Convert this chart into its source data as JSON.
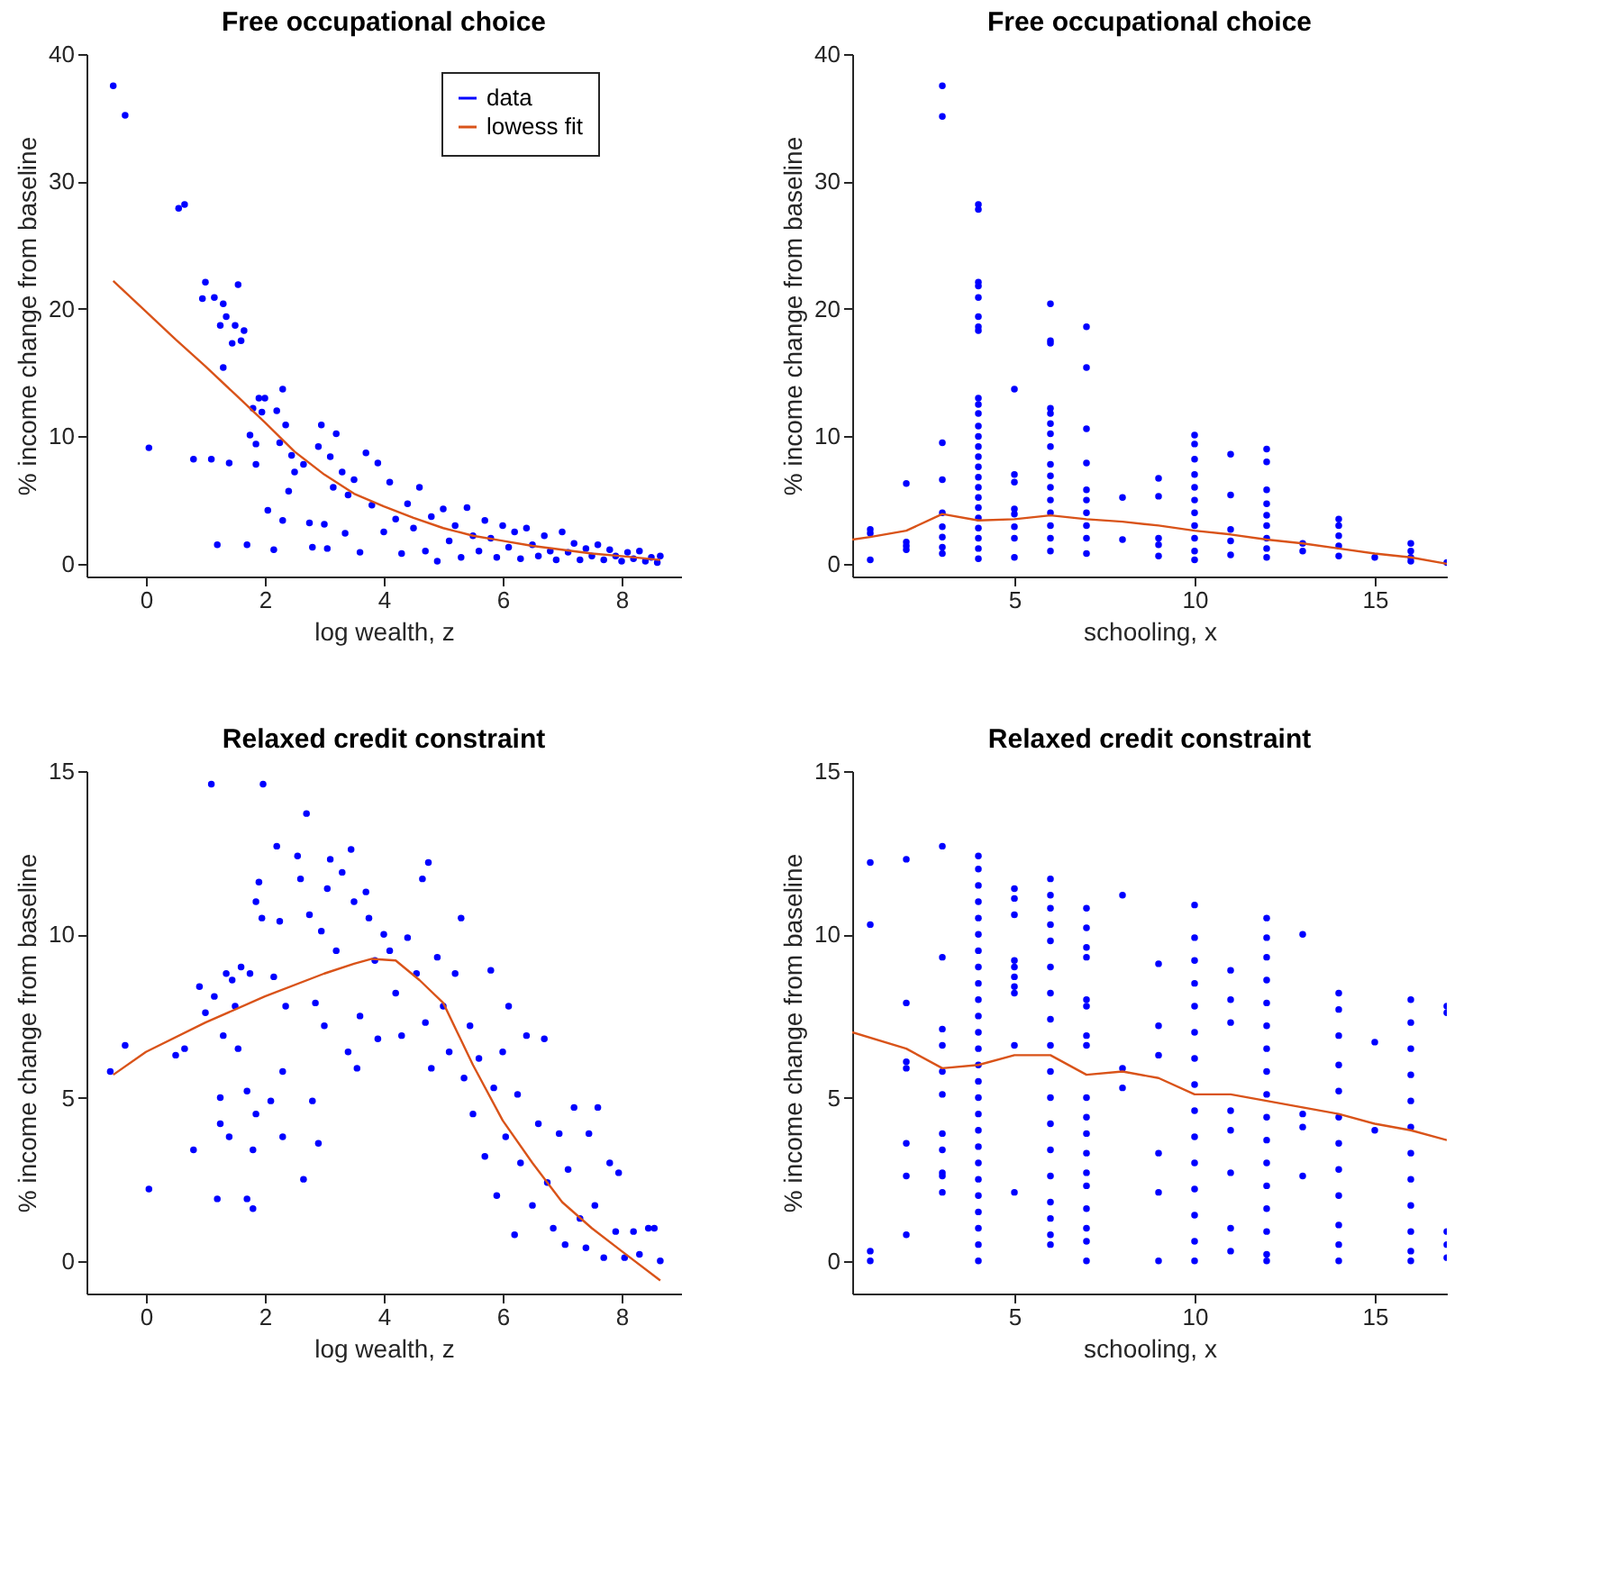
{
  "chart_data": [
    {
      "type": "scatter",
      "title": "Free occupational choice",
      "xlabel": "log wealth, z",
      "ylabel": "% income change from baseline",
      "xlim": [
        -1,
        9
      ],
      "ylim": [
        -1,
        40
      ],
      "xticks": [
        0,
        2,
        4,
        6,
        8
      ],
      "yticks": [
        0,
        10,
        20,
        30,
        40
      ],
      "legend": "top right",
      "series": [
        {
          "name": "data",
          "marker": "circle",
          "color": "#0000ff",
          "x": [
            -0.55,
            -0.35,
            0.05,
            0.55,
            0.65,
            0.8,
            0.95,
            1.0,
            1.1,
            1.15,
            1.2,
            1.25,
            1.3,
            1.3,
            1.35,
            1.4,
            1.45,
            1.5,
            1.55,
            1.6,
            1.65,
            1.7,
            1.75,
            1.8,
            1.85,
            1.85,
            1.9,
            1.95,
            2.0,
            2.05,
            2.15,
            2.2,
            2.25,
            2.3,
            2.3,
            2.35,
            2.4,
            2.45,
            2.5,
            2.65,
            2.75,
            2.8,
            2.9,
            2.95,
            3.0,
            3.05,
            3.1,
            3.15,
            3.2,
            3.3,
            3.35,
            3.4,
            3.5,
            3.6,
            3.7,
            3.8,
            3.9,
            4.0,
            4.1,
            4.2,
            4.3,
            4.4,
            4.5,
            4.6,
            4.7,
            4.8,
            4.9,
            5.0,
            5.1,
            5.2,
            5.3,
            5.4,
            5.5,
            5.6,
            5.7,
            5.8,
            5.9,
            6.0,
            6.1,
            6.2,
            6.3,
            6.4,
            6.5,
            6.6,
            6.7,
            6.8,
            6.9,
            7.0,
            7.1,
            7.2,
            7.3,
            7.4,
            7.5,
            7.6,
            7.7,
            7.8,
            7.9,
            8.0,
            8.1,
            8.2,
            8.3,
            8.4,
            8.5,
            8.6,
            8.65
          ],
          "values": [
            37.5,
            35.2,
            9.1,
            27.9,
            28.2,
            8.2,
            20.8,
            22.1,
            8.2,
            20.9,
            1.5,
            18.7,
            20.4,
            15.4,
            19.4,
            7.9,
            17.3,
            18.7,
            21.9,
            17.5,
            18.3,
            1.5,
            10.1,
            12.2,
            9.4,
            7.8,
            13.0,
            11.9,
            13.0,
            4.2,
            1.1,
            12.0,
            9.5,
            3.4,
            13.7,
            10.9,
            5.7,
            8.5,
            7.2,
            7.8,
            3.2,
            1.3,
            9.2,
            10.9,
            3.1,
            1.2,
            8.4,
            6.0,
            10.2,
            7.2,
            2.4,
            5.4,
            6.6,
            0.9,
            8.7,
            4.6,
            7.9,
            2.5,
            6.4,
            3.5,
            0.8,
            4.7,
            2.8,
            6.0,
            1.0,
            3.7,
            0.2,
            4.3,
            1.8,
            3.0,
            0.5,
            4.4,
            2.2,
            1.0,
            3.4,
            2.0,
            0.5,
            3.0,
            1.3,
            2.5,
            0.4,
            2.8,
            1.5,
            0.6,
            2.2,
            1.0,
            0.3,
            2.5,
            0.9,
            1.6,
            0.3,
            1.2,
            0.6,
            1.5,
            0.3,
            1.1,
            0.6,
            0.2,
            0.9,
            0.4,
            1.0,
            0.2,
            0.5,
            0.1,
            0.6
          ]
        },
        {
          "name": "lowess fit",
          "type": "line",
          "marker": "none",
          "color": "#d95319",
          "x": [
            -0.55,
            0,
            0.5,
            1,
            1.5,
            2,
            2.5,
            3,
            3.5,
            4,
            4.5,
            5,
            5.5,
            6,
            6.5,
            7,
            7.5,
            8,
            8.65
          ],
          "values": [
            22.2,
            19.8,
            17.6,
            15.5,
            13.3,
            11.1,
            8.8,
            7.0,
            5.5,
            4.5,
            3.6,
            2.8,
            2.2,
            1.8,
            1.4,
            1.1,
            0.8,
            0.6,
            0.3
          ]
        }
      ]
    },
    {
      "type": "scatter",
      "title": "Free occupational choice",
      "xlabel": "schooling, x",
      "ylabel": "% income change from baseline",
      "xlim": [
        0.5,
        17
      ],
      "ylim": [
        -1,
        40
      ],
      "xticks": [
        5,
        10,
        15
      ],
      "yticks": [
        0,
        10,
        20,
        30,
        40
      ],
      "series": [
        {
          "marker": "circle",
          "color": "#0000ff",
          "x": [
            1,
            1,
            1,
            2,
            2,
            2,
            2,
            3,
            3,
            3,
            3,
            3,
            3,
            3,
            3,
            3,
            4,
            4,
            4,
            4,
            4,
            4,
            4,
            4,
            4,
            4,
            4,
            4,
            4,
            4,
            4,
            4,
            4,
            4,
            4,
            4,
            4,
            4,
            4,
            4,
            4,
            5,
            5,
            5,
            5,
            5,
            5,
            5,
            5,
            6,
            6,
            6,
            6,
            6,
            6,
            6,
            6,
            6,
            6,
            6,
            6,
            6,
            6,
            6,
            6,
            7,
            7,
            7,
            7,
            7,
            7,
            7,
            7,
            7,
            7,
            8,
            8,
            9,
            9,
            9,
            9,
            9,
            10,
            10,
            10,
            10,
            10,
            10,
            10,
            10,
            10,
            10,
            10,
            11,
            11,
            11,
            11,
            11,
            12,
            12,
            12,
            12,
            12,
            12,
            12,
            12,
            12,
            13,
            13,
            14,
            14,
            14,
            14,
            14,
            15,
            16,
            16,
            16,
            16,
            17
          ],
          "values": [
            2.7,
            2.4,
            0.3,
            6.3,
            1.7,
            1.4,
            1.1,
            37.5,
            35.1,
            9.5,
            6.6,
            4.0,
            2.9,
            2.1,
            1.3,
            0.8,
            28.2,
            27.8,
            22.1,
            21.8,
            20.9,
            19.4,
            18.6,
            18.3,
            13,
            12.5,
            11.8,
            10.8,
            10,
            9.2,
            8.4,
            7.6,
            6.8,
            6,
            5.2,
            4.4,
            3.6,
            2.8,
            2,
            1.2,
            0.4,
            13.7,
            7.0,
            6.4,
            4.3,
            3.9,
            2.9,
            2.0,
            0.5,
            20.4,
            17.5,
            17.3,
            12.2,
            11.8,
            11.0,
            10.2,
            9.2,
            7.8,
            6.9,
            6,
            5,
            4,
            3,
            2,
            1,
            18.6,
            15.4,
            10.6,
            7.9,
            5.8,
            5.0,
            4.0,
            3.0,
            2.0,
            0.8,
            5.2,
            1.9,
            6.7,
            5.3,
            2.0,
            1.5,
            0.6,
            10.1,
            9.4,
            8.2,
            7,
            6,
            5,
            4,
            3,
            2,
            1,
            0.3,
            8.6,
            5.4,
            2.7,
            1.8,
            0.7,
            9.0,
            8.0,
            5.8,
            4.7,
            3.8,
            3,
            2,
            1.2,
            0.5,
            1.6,
            1.0,
            3.5,
            3.0,
            2.2,
            1.4,
            0.6,
            0.5,
            1.6,
            1.0,
            0.5,
            0.2,
            0.1
          ]
        },
        {
          "type": "line",
          "marker": "none",
          "color": "#d95319",
          "x": [
            0.5,
            1,
            2,
            3,
            4,
            5,
            6,
            7,
            8,
            9,
            10,
            11,
            12,
            13,
            14,
            15,
            16,
            17
          ],
          "values": [
            1.9,
            2.1,
            2.6,
            3.9,
            3.4,
            3.5,
            3.8,
            3.5,
            3.3,
            3.0,
            2.6,
            2.3,
            1.9,
            1.6,
            1.2,
            0.8,
            0.5,
            0.0
          ]
        }
      ]
    },
    {
      "type": "scatter",
      "title": "Relaxed credit constraint",
      "xlabel": "log wealth, z",
      "ylabel": "% income change from baseline",
      "xlim": [
        -1,
        9
      ],
      "ylim": [
        -1,
        15
      ],
      "xticks": [
        0,
        2,
        4,
        6,
        8
      ],
      "yticks": [
        0,
        5,
        10,
        15
      ],
      "series": [
        {
          "marker": "circle",
          "color": "#0000ff",
          "x": [
            -0.6,
            -0.35,
            0.05,
            0.5,
            0.65,
            0.8,
            0.9,
            1.0,
            1.1,
            1.15,
            1.2,
            1.25,
            1.25,
            1.3,
            1.35,
            1.4,
            1.45,
            1.5,
            1.55,
            1.6,
            1.7,
            1.7,
            1.75,
            1.8,
            1.8,
            1.85,
            1.85,
            1.9,
            1.95,
            1.97,
            2.1,
            2.15,
            2.2,
            2.25,
            2.3,
            2.3,
            2.35,
            2.55,
            2.6,
            2.65,
            2.7,
            2.75,
            2.8,
            2.85,
            2.9,
            2.95,
            3.0,
            3.05,
            3.1,
            3.2,
            3.3,
            3.4,
            3.45,
            3.5,
            3.55,
            3.6,
            3.7,
            3.75,
            3.85,
            3.9,
            4.0,
            4.1,
            4.2,
            4.3,
            4.4,
            4.55,
            4.65,
            4.7,
            4.75,
            4.8,
            4.9,
            5.0,
            5.1,
            5.2,
            5.3,
            5.35,
            5.45,
            5.5,
            5.6,
            5.7,
            5.8,
            5.85,
            5.9,
            6.0,
            6.05,
            6.1,
            6.2,
            6.25,
            6.3,
            6.4,
            6.5,
            6.6,
            6.7,
            6.75,
            6.85,
            6.95,
            7.05,
            7.1,
            7.2,
            7.3,
            7.4,
            7.45,
            7.55,
            7.6,
            7.7,
            7.8,
            7.9,
            7.95,
            8.05,
            8.2,
            8.3,
            8.45,
            8.55,
            8.65
          ],
          "values": [
            5.8,
            6.6,
            2.2,
            6.3,
            6.5,
            3.4,
            8.4,
            7.6,
            14.6,
            8.1,
            1.9,
            5.0,
            4.2,
            6.9,
            8.8,
            3.8,
            8.6,
            7.8,
            6.5,
            9.0,
            5.2,
            1.9,
            8.8,
            3.4,
            1.6,
            4.5,
            11.0,
            11.6,
            10.5,
            14.6,
            4.9,
            8.7,
            12.7,
            10.4,
            5.8,
            3.8,
            7.8,
            12.4,
            11.7,
            2.5,
            13.7,
            10.6,
            4.9,
            7.9,
            3.6,
            10.1,
            7.2,
            11.4,
            12.3,
            9.5,
            11.9,
            6.4,
            12.6,
            11.0,
            5.9,
            7.5,
            11.3,
            10.5,
            9.2,
            6.8,
            10.0,
            9.5,
            8.2,
            6.9,
            9.9,
            8.8,
            11.7,
            7.3,
            12.2,
            5.9,
            9.3,
            7.8,
            6.4,
            8.8,
            10.5,
            5.6,
            7.2,
            4.5,
            6.2,
            3.2,
            8.9,
            5.3,
            2.0,
            6.4,
            3.8,
            7.8,
            0.8,
            5.1,
            3.0,
            6.9,
            1.7,
            4.2,
            6.8,
            2.4,
            1.0,
            3.9,
            0.5,
            2.8,
            4.7,
            1.3,
            0.4,
            3.9,
            1.7,
            4.7,
            0.1,
            3.0,
            0.9,
            2.7,
            0.1,
            0.9,
            0.2,
            1.0,
            1.0,
            0.0
          ]
        },
        {
          "type": "line",
          "marker": "none",
          "color": "#d95319",
          "x": [
            -0.55,
            0,
            1,
            2,
            3,
            3.5,
            3.8,
            4.2,
            4.6,
            5,
            5.5,
            6,
            6.5,
            7,
            7.5,
            8,
            8.65
          ],
          "values": [
            5.7,
            6.4,
            7.3,
            8.1,
            8.8,
            9.1,
            9.25,
            9.2,
            8.6,
            7.9,
            6.0,
            4.3,
            3.0,
            1.8,
            1.0,
            0.3,
            -0.6
          ]
        }
      ]
    },
    {
      "type": "scatter",
      "title": "Relaxed credit constraint",
      "xlabel": "schooling, x",
      "ylabel": "% income change from baseline",
      "xlim": [
        0.5,
        17
      ],
      "ylim": [
        -1,
        15
      ],
      "xticks": [
        5,
        10,
        15
      ],
      "yticks": [
        0,
        5,
        10,
        15
      ],
      "series": [
        {
          "marker": "circle",
          "color": "#0000ff",
          "x": [
            1,
            1,
            1,
            1,
            2,
            2,
            2,
            2,
            2,
            2,
            2,
            3,
            3,
            3,
            3,
            3,
            3,
            3,
            3,
            3,
            3,
            3,
            4,
            4,
            4,
            4,
            4,
            4,
            4,
            4,
            4,
            4,
            4,
            4,
            4,
            4,
            4,
            4,
            4,
            4,
            4,
            4,
            4,
            4,
            4,
            4,
            4,
            4,
            5,
            5,
            5,
            5,
            5,
            5,
            5,
            5,
            5,
            5,
            6,
            6,
            6,
            6,
            6,
            6,
            6,
            6,
            6,
            6,
            6,
            6,
            6,
            6,
            6,
            6,
            6,
            6,
            7,
            7,
            7,
            7,
            7,
            7,
            7,
            7,
            7,
            7,
            7,
            7,
            7,
            7,
            7,
            7,
            7,
            7,
            8,
            8,
            8,
            9,
            9,
            9,
            9,
            9,
            9,
            10,
            10,
            10,
            10,
            10,
            10,
            10,
            10,
            10,
            10,
            10,
            10,
            10,
            10,
            10,
            11,
            11,
            11,
            11,
            11,
            11,
            11,
            11,
            12,
            12,
            12,
            12,
            12,
            12,
            12,
            12,
            12,
            12,
            12,
            12,
            12,
            12,
            12,
            12,
            12,
            13,
            13,
            13,
            13,
            14,
            14,
            14,
            14,
            14,
            14,
            14,
            14,
            14,
            14,
            14,
            14,
            15,
            15,
            16,
            16,
            16,
            16,
            16,
            16,
            16,
            16,
            16,
            16,
            16,
            16,
            17,
            17,
            17,
            17,
            17
          ],
          "values": [
            12.2,
            10.3,
            0.3,
            0,
            12.3,
            7.9,
            6.1,
            5.9,
            3.6,
            2.6,
            0.8,
            12.7,
            9.3,
            7.1,
            6.6,
            5.8,
            5.1,
            3.9,
            3.4,
            2.7,
            2.6,
            2.1,
            12.4,
            12,
            11.5,
            11,
            10.5,
            10,
            9.5,
            9,
            8.5,
            8,
            7.5,
            7,
            6.5,
            6,
            5.5,
            5,
            4.5,
            4,
            3.5,
            3,
            2.5,
            2,
            1.5,
            1,
            0.5,
            0,
            11.4,
            11.1,
            10.6,
            9.2,
            9.0,
            8.7,
            8.4,
            8.2,
            6.6,
            2.1,
            11.7,
            11.2,
            10.8,
            10.3,
            9.8,
            9,
            8.2,
            7.4,
            6.6,
            5.8,
            5,
            4.2,
            3.4,
            2.6,
            1.8,
            1.3,
            0.8,
            0.5,
            10.8,
            10.2,
            9.6,
            9.3,
            8.0,
            7.8,
            6.9,
            6.6,
            5.0,
            4.4,
            3.9,
            3.3,
            2.7,
            2.3,
            1.6,
            1.0,
            0.6,
            0,
            11.2,
            5.9,
            5.3,
            9.1,
            7.2,
            6.3,
            3.3,
            2.1,
            0,
            10.9,
            9.9,
            9.2,
            8.5,
            7.8,
            7,
            6.2,
            5.4,
            4.6,
            3.8,
            3,
            2.2,
            1.4,
            0.6,
            0,
            8.9,
            8.0,
            7.3,
            4.6,
            4.0,
            2.7,
            1.0,
            0.3,
            10.5,
            9.9,
            9.3,
            8.6,
            7.9,
            7.2,
            6.5,
            5.8,
            5.1,
            4.4,
            3.7,
            3,
            2.3,
            1.6,
            0.9,
            0.2,
            0,
            10.0,
            4.5,
            4.1,
            2.6,
            8.2,
            7.7,
            6.9,
            6.0,
            5.2,
            4.4,
            3.6,
            2.8,
            2.0,
            1.1,
            0.5,
            0,
            6.7,
            4.0,
            8.0,
            7.3,
            6.5,
            5.7,
            4.9,
            4.1,
            3.3,
            2.5,
            1.7,
            0.9,
            0.3,
            0,
            7.8,
            7.6,
            0.9,
            0.5,
            0.1
          ]
        },
        {
          "type": "line",
          "marker": "none",
          "color": "#d95319",
          "x": [
            0.5,
            2,
            3,
            4,
            5,
            6,
            7,
            8,
            9,
            10,
            11,
            12,
            13,
            14,
            15,
            16,
            17
          ],
          "values": [
            7.0,
            6.5,
            5.9,
            6.0,
            6.3,
            6.3,
            5.7,
            5.8,
            5.6,
            5.1,
            5.1,
            4.9,
            4.7,
            4.5,
            4.2,
            4.0,
            3.7
          ]
        }
      ]
    }
  ]
}
